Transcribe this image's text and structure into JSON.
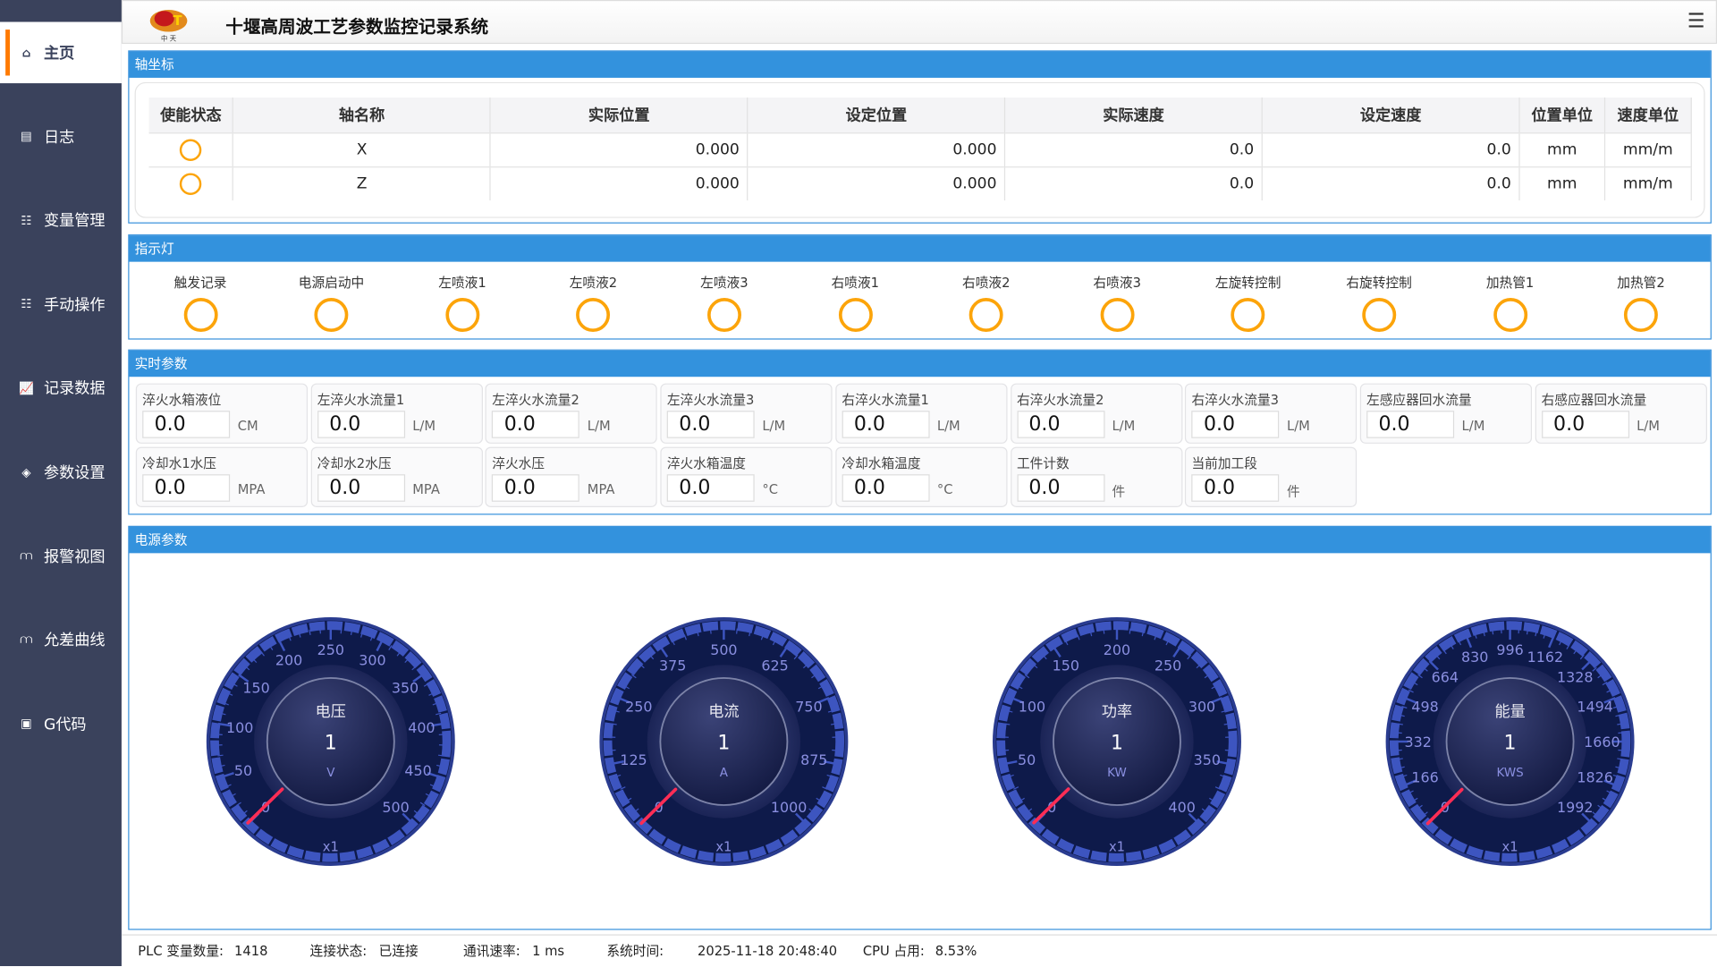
{
  "app": {
    "title": "十堰高周波工艺参数监控记录系统",
    "logo_text": "中 天",
    "menu_icon": "hamburger-icon"
  },
  "sidebar": {
    "items": [
      {
        "label": "主页",
        "icon": "home-icon",
        "active": true
      },
      {
        "label": "日志",
        "icon": "document-icon"
      },
      {
        "label": "变量管理",
        "icon": "list-icon"
      },
      {
        "label": "手动操作",
        "icon": "list-icon"
      },
      {
        "label": "记录数据",
        "icon": "chart-icon"
      },
      {
        "label": "参数设置",
        "icon": "layers-icon"
      },
      {
        "label": "报警视图",
        "icon": "alarm-icon"
      },
      {
        "label": "允差曲线",
        "icon": "alarm-icon"
      },
      {
        "label": "G代码",
        "icon": "code-icon"
      }
    ]
  },
  "axis_panel": {
    "title": "轴坐标",
    "headers": [
      "使能状态",
      "轴名称",
      "实际位置",
      "设定位置",
      "实际速度",
      "设定速度",
      "位置单位",
      "速度单位"
    ],
    "rows": [
      {
        "name": "X",
        "actual_pos": "0.000",
        "set_pos": "0.000",
        "actual_speed": "0.0",
        "set_speed": "0.0",
        "pos_unit": "mm",
        "speed_unit": "mm/m"
      },
      {
        "name": "Z",
        "actual_pos": "0.000",
        "set_pos": "0.000",
        "actual_speed": "0.0",
        "set_speed": "0.0",
        "pos_unit": "mm",
        "speed_unit": "mm/m"
      }
    ]
  },
  "lamps_panel": {
    "title": "指示灯",
    "items": [
      "触发记录",
      "电源启动中",
      "左喷液1",
      "左喷液2",
      "左喷液3",
      "右喷液1",
      "右喷液2",
      "右喷液3",
      "左旋转控制",
      "右旋转控制",
      "加热管1",
      "加热管2"
    ]
  },
  "realtime_panel": {
    "title": "实时参数",
    "items": [
      {
        "label": "淬火水箱液位",
        "value": "0.0",
        "unit": "CM"
      },
      {
        "label": "左淬火水流量1",
        "value": "0.0",
        "unit": "L/M"
      },
      {
        "label": "左淬火水流量2",
        "value": "0.0",
        "unit": "L/M"
      },
      {
        "label": "左淬火水流量3",
        "value": "0.0",
        "unit": "L/M"
      },
      {
        "label": "右淬火水流量1",
        "value": "0.0",
        "unit": "L/M"
      },
      {
        "label": "右淬火水流量2",
        "value": "0.0",
        "unit": "L/M"
      },
      {
        "label": "右淬火水流量3",
        "value": "0.0",
        "unit": "L/M"
      },
      {
        "label": "左感应器回水流量",
        "value": "0.0",
        "unit": "L/M"
      },
      {
        "label": "右感应器回水流量",
        "value": "0.0",
        "unit": "L/M"
      },
      {
        "label": "冷却水1水压",
        "value": "0.0",
        "unit": "MPA"
      },
      {
        "label": "冷却水2水压",
        "value": "0.0",
        "unit": "MPA"
      },
      {
        "label": "淬火水压",
        "value": "0.0",
        "unit": "MPA"
      },
      {
        "label": "淬火水箱温度",
        "value": "0.0",
        "unit": "°C"
      },
      {
        "label": "冷却水箱温度",
        "value": "0.0",
        "unit": "°C"
      },
      {
        "label": "工件计数",
        "value": "0.0",
        "unit": "件"
      },
      {
        "label": "当前加工段",
        "value": "0.0",
        "unit": "件"
      }
    ]
  },
  "power_panel": {
    "title": "电源参数",
    "gauges": [
      {
        "label": "电压",
        "value": "1",
        "unit": "V",
        "multiplier": "x1",
        "min": 0,
        "max": 500,
        "ticks": [
          "0",
          "50",
          "100",
          "150",
          "200",
          "250",
          "300",
          "350",
          "400",
          "450",
          "500"
        ]
      },
      {
        "label": "电流",
        "value": "1",
        "unit": "A",
        "multiplier": "x1",
        "min": 0,
        "max": 1000,
        "ticks": [
          "0",
          "125",
          "250",
          "375",
          "500",
          "625",
          "750",
          "875",
          "1000"
        ]
      },
      {
        "label": "功率",
        "value": "1",
        "unit": "KW",
        "multiplier": "x1",
        "min": 0,
        "max": 400,
        "ticks": [
          "0",
          "50",
          "100",
          "150",
          "200",
          "250",
          "300",
          "350",
          "400"
        ]
      },
      {
        "label": "能量",
        "value": "1",
        "unit": "KWS",
        "multiplier": "x1",
        "min": 0,
        "max": 1992,
        "ticks": [
          "0",
          "166",
          "332",
          "498",
          "664",
          "830",
          "996",
          "1162",
          "1328",
          "1494",
          "1660",
          "1826",
          "1992"
        ]
      }
    ]
  },
  "status": {
    "plc_label": "PLC 变量数量:",
    "plc_count": "1418",
    "conn_label": "连接状态:",
    "conn_value": "已连接",
    "rate_label": "通讯速率:",
    "rate_value": "1 ms",
    "time_label": "系统时间:",
    "time_value": "2025-11-18 20:48:40",
    "cpu_label": "CPU 占用:",
    "cpu_value": "8.53%"
  },
  "colors": {
    "sidebar": "#3a425c",
    "accent": "#3392dd",
    "active_bar": "#ff7a00",
    "lamp_ring": "#fca40a",
    "gauge_bg": "#0e1a4a",
    "gauge_tick": "#3d55c0",
    "needle": "#ff2d55"
  }
}
